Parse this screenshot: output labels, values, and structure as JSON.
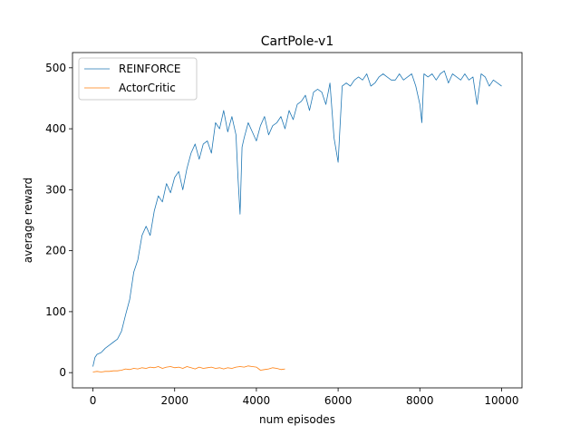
{
  "chart_data": {
    "type": "line",
    "title": "CartPole-v1",
    "xlabel": "num episodes",
    "ylabel": "average reward",
    "xlim": [
      -500,
      10500
    ],
    "ylim": [
      -25,
      525
    ],
    "xticks": [
      0,
      2000,
      4000,
      6000,
      8000,
      10000
    ],
    "xtick_labels": [
      "0",
      "2000",
      "4000",
      "6000",
      "8000",
      "10000"
    ],
    "yticks": [
      0,
      100,
      200,
      300,
      400,
      500
    ],
    "ytick_labels": [
      "0",
      "100",
      "200",
      "300",
      "400",
      "500"
    ],
    "grid": false,
    "legend_position": "top-left",
    "series": [
      {
        "name": "REINFORCE",
        "color": "#1f77b4",
        "x": [
          0,
          50,
          100,
          200,
          300,
          400,
          500,
          600,
          700,
          800,
          900,
          1000,
          1100,
          1200,
          1300,
          1400,
          1500,
          1600,
          1700,
          1800,
          1900,
          2000,
          2100,
          2200,
          2300,
          2400,
          2500,
          2600,
          2700,
          2800,
          2900,
          3000,
          3100,
          3200,
          3300,
          3400,
          3500,
          3550,
          3600,
          3650,
          3700,
          3800,
          3900,
          4000,
          4100,
          4200,
          4300,
          4400,
          4500,
          4600,
          4700,
          4800,
          4900,
          5000,
          5100,
          5200,
          5300,
          5400,
          5500,
          5600,
          5700,
          5800,
          5900,
          6000,
          6100,
          6200,
          6300,
          6400,
          6500,
          6600,
          6700,
          6800,
          6900,
          7000,
          7100,
          7200,
          7300,
          7400,
          7500,
          7600,
          7700,
          7800,
          7900,
          8000,
          8050,
          8100,
          8200,
          8300,
          8400,
          8500,
          8600,
          8700,
          8800,
          8900,
          9000,
          9100,
          9200,
          9300,
          9400,
          9500,
          9600,
          9700,
          9800,
          9900,
          10000
        ],
        "y": [
          10,
          25,
          30,
          33,
          40,
          45,
          50,
          55,
          68,
          95,
          120,
          165,
          185,
          225,
          240,
          225,
          265,
          290,
          280,
          310,
          295,
          320,
          330,
          300,
          335,
          360,
          375,
          350,
          375,
          380,
          360,
          410,
          400,
          430,
          395,
          420,
          390,
          320,
          260,
          370,
          385,
          410,
          395,
          380,
          405,
          420,
          390,
          405,
          410,
          420,
          400,
          430,
          415,
          440,
          445,
          455,
          430,
          460,
          465,
          460,
          440,
          475,
          385,
          345,
          470,
          475,
          470,
          480,
          485,
          480,
          490,
          470,
          475,
          485,
          490,
          485,
          480,
          480,
          490,
          480,
          485,
          490,
          470,
          440,
          410,
          490,
          485,
          490,
          480,
          490,
          495,
          475,
          490,
          485,
          480,
          490,
          480,
          485,
          440,
          490,
          485,
          470,
          480,
          475,
          470
        ]
      },
      {
        "name": "ActorCritic",
        "color": "#ff7f0e",
        "x": [
          0,
          100,
          200,
          300,
          400,
          500,
          600,
          700,
          800,
          900,
          1000,
          1100,
          1200,
          1300,
          1400,
          1500,
          1600,
          1700,
          1800,
          1900,
          2000,
          2100,
          2200,
          2300,
          2400,
          2500,
          2600,
          2700,
          2800,
          2900,
          3000,
          3100,
          3200,
          3300,
          3400,
          3500,
          3600,
          3700,
          3800,
          3900,
          4000,
          4100,
          4200,
          4300,
          4400,
          4500,
          4600,
          4700
        ],
        "y": [
          1,
          2,
          1,
          2,
          2,
          3,
          3,
          4,
          6,
          5,
          7,
          6,
          8,
          7,
          9,
          8,
          10,
          7,
          9,
          10,
          8,
          9,
          7,
          10,
          8,
          6,
          9,
          7,
          8,
          9,
          7,
          8,
          6,
          8,
          7,
          9,
          10,
          9,
          11,
          10,
          9,
          4,
          5,
          6,
          8,
          7,
          5,
          6
        ]
      }
    ]
  }
}
